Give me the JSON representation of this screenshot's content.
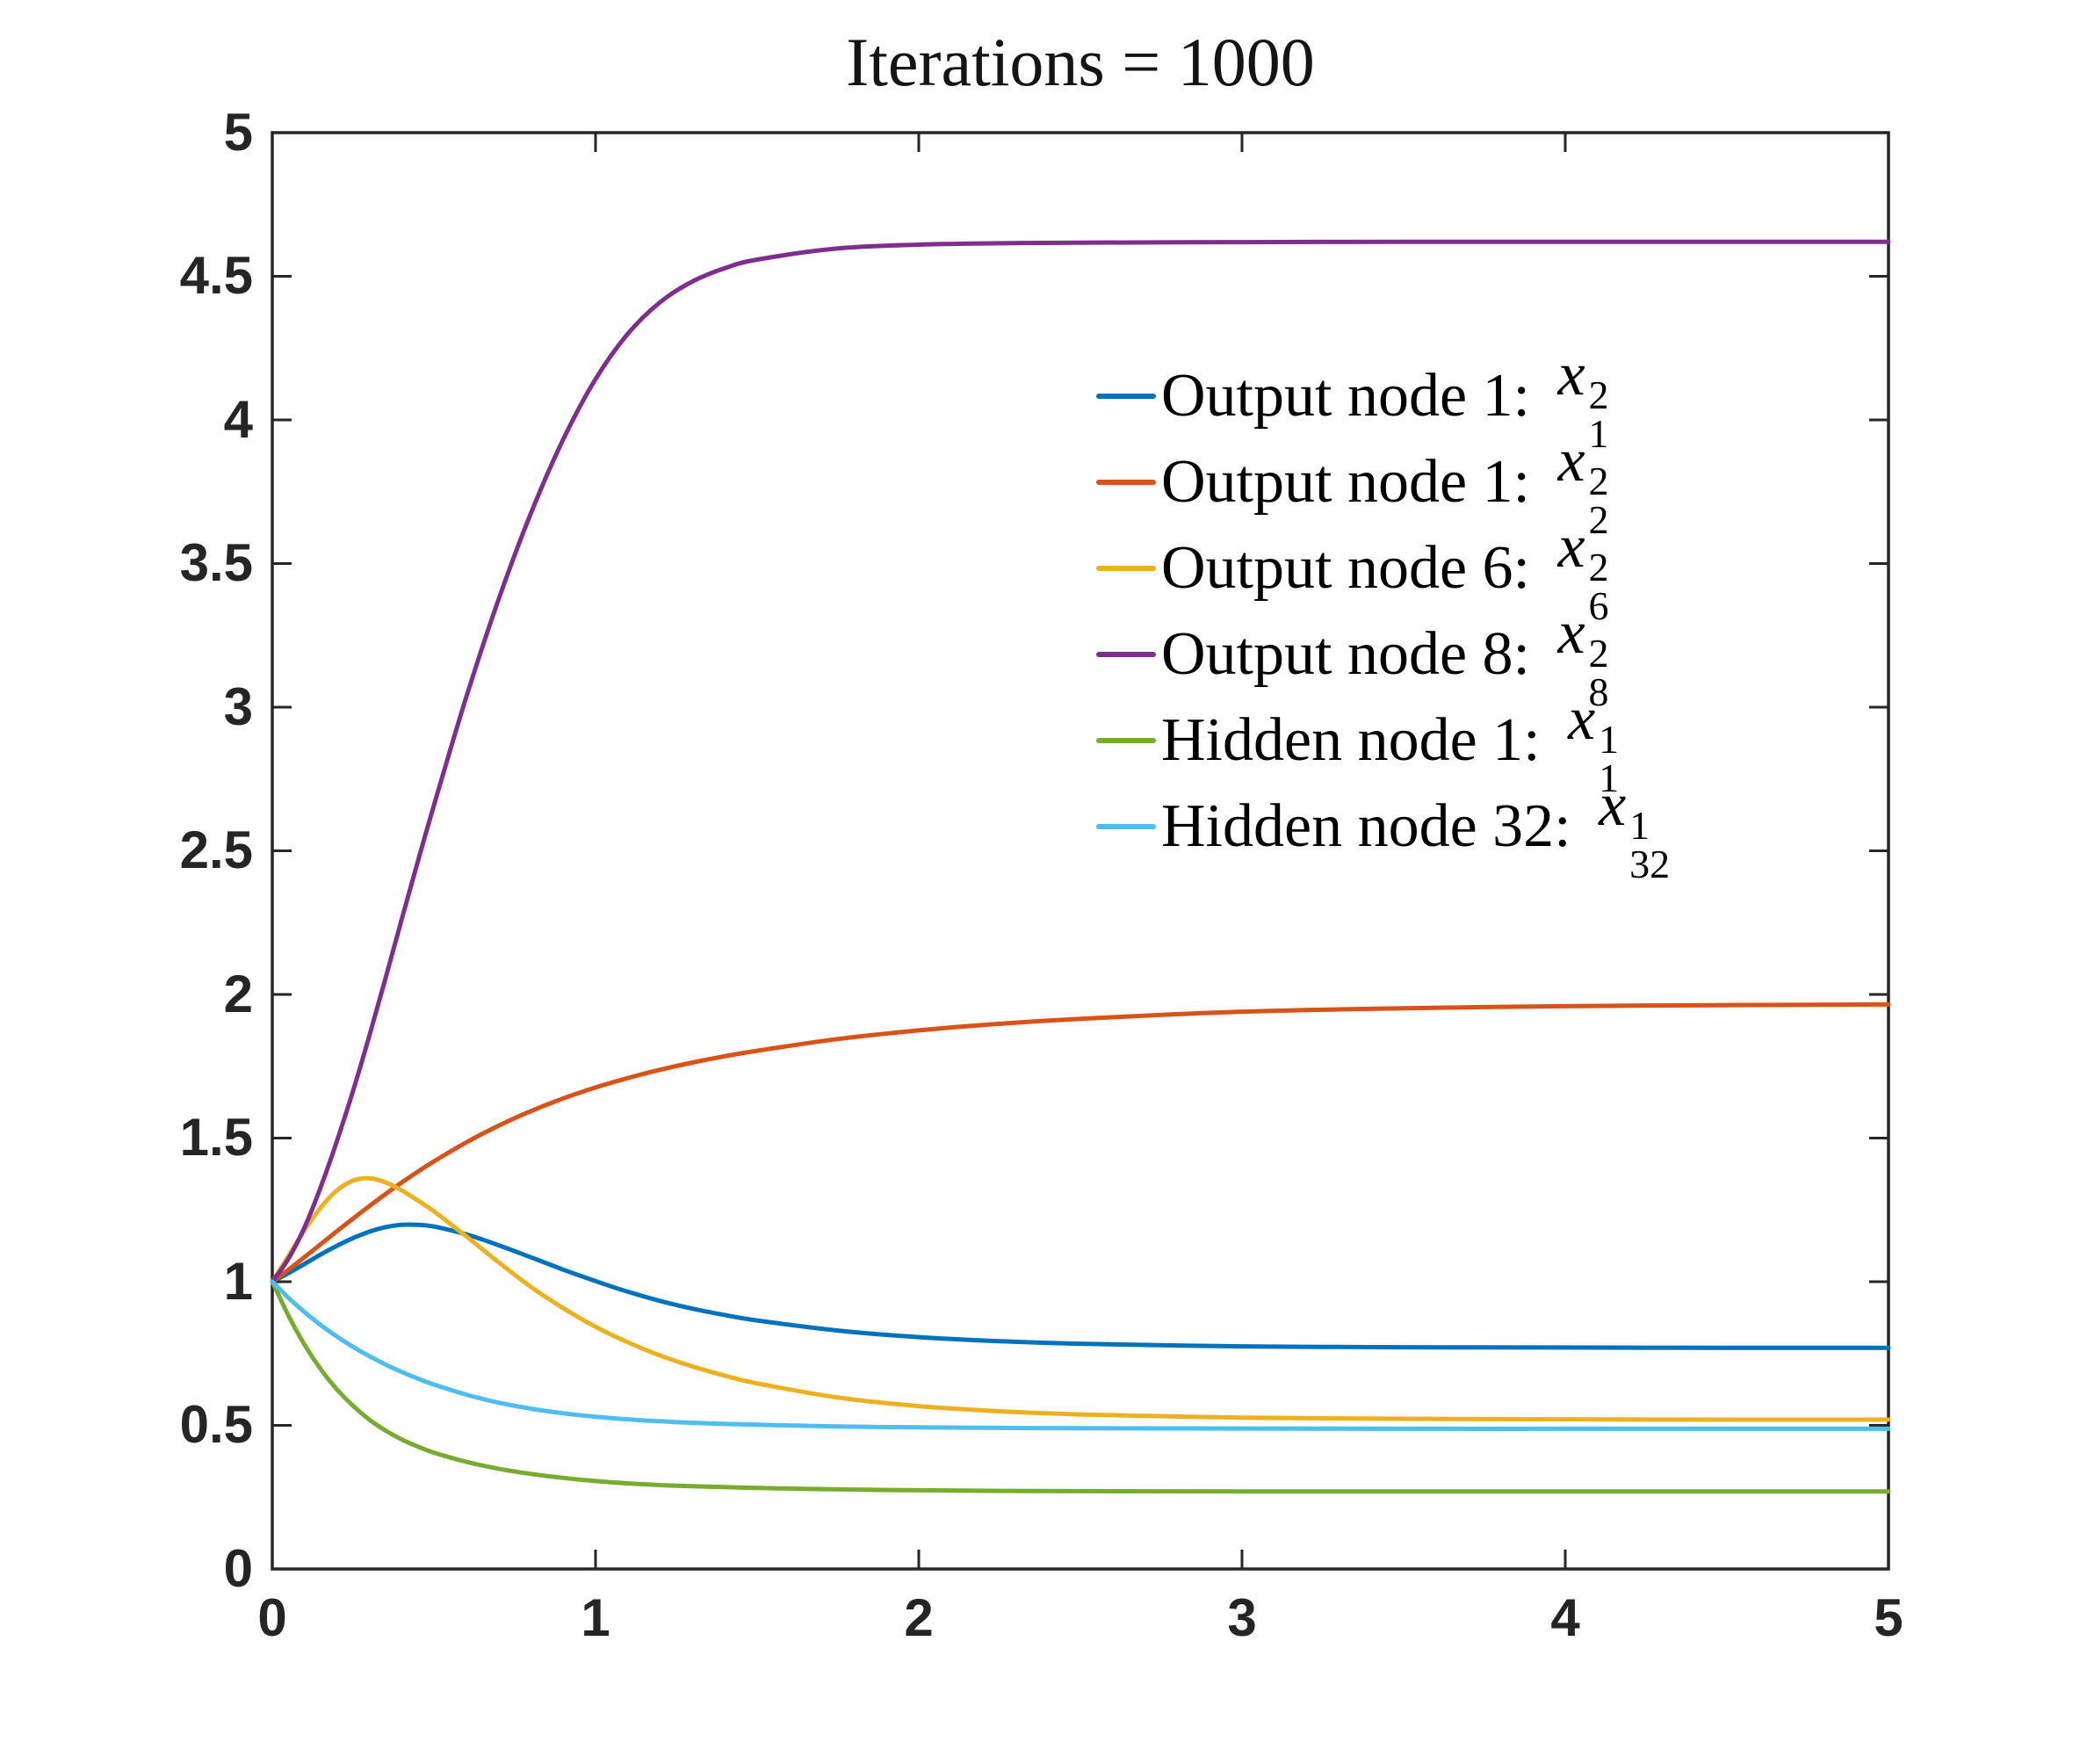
{
  "chart_data": {
    "type": "line",
    "title": "Iterations = 1000",
    "xlabel": "",
    "ylabel": "",
    "xlim": [
      0,
      5
    ],
    "ylim": [
      0,
      5
    ],
    "grid": false,
    "legend_position": "upper-right-inside",
    "axis_color": "#262626",
    "x_ticks": [
      0,
      1,
      2,
      3,
      4,
      5
    ],
    "x_ticklabels": [
      "0",
      "1",
      "2",
      "3",
      "4",
      "5"
    ],
    "y_ticks": [
      0,
      0.5,
      1,
      1.5,
      2,
      2.5,
      3,
      3.5,
      4,
      4.5,
      5
    ],
    "y_ticklabels": [
      "0",
      "0.5",
      "1",
      "1.5",
      "2",
      "2.5",
      "3",
      "3.5",
      "4",
      "4.5",
      "5"
    ],
    "x": [
      0,
      0.05,
      0.1,
      0.15,
      0.2,
      0.25,
      0.3,
      0.35,
      0.4,
      0.45,
      0.5,
      0.6,
      0.7,
      0.8,
      0.9,
      1,
      1.1,
      1.2,
      1.3,
      1.4,
      1.5,
      1.75,
      2,
      2.25,
      2.5,
      3,
      3.5,
      4,
      4.5,
      5
    ],
    "series": [
      {
        "name": "Output node 1: x_1^2",
        "legend_label": "Output node 1: ",
        "var": "x",
        "sup": "2",
        "sub": "1",
        "color": "#0072BD",
        "values": [
          1.0,
          1.03,
          1.062,
          1.095,
          1.125,
          1.152,
          1.174,
          1.19,
          1.198,
          1.198,
          1.192,
          1.165,
          1.127,
          1.085,
          1.042,
          1.002,
          0.965,
          0.933,
          0.906,
          0.884,
          0.865,
          0.83,
          0.807,
          0.793,
          0.784,
          0.775,
          0.772,
          0.771,
          0.77,
          0.77
        ]
      },
      {
        "name": "Output node 1: x_2^2",
        "legend_label": "Output node 1: ",
        "var": "x",
        "sup": "2",
        "sub": "2",
        "color": "#D95319",
        "values": [
          1.0,
          1.042,
          1.086,
          1.131,
          1.176,
          1.22,
          1.263,
          1.305,
          1.345,
          1.383,
          1.419,
          1.485,
          1.543,
          1.594,
          1.638,
          1.676,
          1.709,
          1.738,
          1.763,
          1.785,
          1.804,
          1.845,
          1.875,
          1.898,
          1.915,
          1.94,
          1.952,
          1.959,
          1.963,
          1.965
        ]
      },
      {
        "name": "Output node 6: x_6^2",
        "legend_label": "Output node 6: ",
        "var": "x",
        "sup": "2",
        "sub": "6",
        "color": "#EDB120",
        "values": [
          1.0,
          1.09,
          1.18,
          1.258,
          1.318,
          1.352,
          1.36,
          1.346,
          1.318,
          1.283,
          1.245,
          1.158,
          1.068,
          0.982,
          0.908,
          0.843,
          0.789,
          0.743,
          0.705,
          0.673,
          0.646,
          0.597,
          0.567,
          0.549,
          0.538,
          0.527,
          0.523,
          0.521,
          0.52,
          0.52
        ]
      },
      {
        "name": "Output node 8: x_8^2",
        "legend_label": "Output node 8: ",
        "var": "x",
        "sup": "2",
        "sub": "8",
        "color": "#7E2F8E",
        "values": [
          1.0,
          1.08,
          1.19,
          1.33,
          1.49,
          1.665,
          1.855,
          2.055,
          2.26,
          2.462,
          2.658,
          3.035,
          3.375,
          3.675,
          3.932,
          4.142,
          4.3,
          4.41,
          4.482,
          4.528,
          4.558,
          4.597,
          4.61,
          4.615,
          4.617,
          4.619,
          4.62,
          4.62,
          4.62,
          4.62
        ]
      },
      {
        "name": "Hidden node 1: x_1^1",
        "legend_label": "Hidden node 1: ",
        "var": "x",
        "sup": "1",
        "sub": "1",
        "color": "#77AC30",
        "values": [
          1.0,
          0.882,
          0.78,
          0.695,
          0.625,
          0.568,
          0.52,
          0.482,
          0.451,
          0.426,
          0.405,
          0.373,
          0.349,
          0.331,
          0.317,
          0.306,
          0.298,
          0.292,
          0.288,
          0.285,
          0.282,
          0.277,
          0.274,
          0.272,
          0.271,
          0.27,
          0.27,
          0.27,
          0.27,
          0.27
        ]
      },
      {
        "name": "Hidden node 32: x_32^1",
        "legend_label": "Hidden node 32: ",
        "var": "x",
        "sup": "1",
        "sub": "32",
        "color": "#4DBEEE",
        "values": [
          1.0,
          0.944,
          0.894,
          0.849,
          0.809,
          0.773,
          0.741,
          0.712,
          0.686,
          0.663,
          0.642,
          0.607,
          0.579,
          0.558,
          0.542,
          0.53,
          0.521,
          0.514,
          0.509,
          0.505,
          0.502,
          0.496,
          0.493,
          0.491,
          0.49,
          0.489,
          0.488,
          0.488,
          0.488,
          0.488
        ]
      }
    ]
  }
}
